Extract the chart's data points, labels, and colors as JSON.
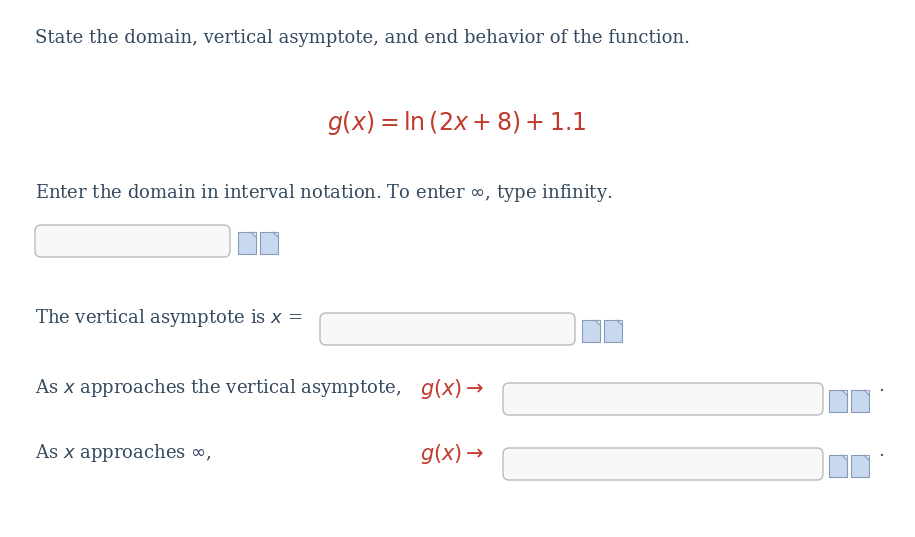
{
  "background_color": "#ffffff",
  "title_text": "State the domain, vertical asymptote, and end behavior of the function.",
  "title_color": "#34495e",
  "title_fontsize": 13.0,
  "formula_color": "#c0392b",
  "formula_fontsize": 17,
  "domain_label": "Enter the domain in interval notation. To enter $\\infty$, type infinity.",
  "domain_label_color": "#34495e",
  "domain_label_fontsize": 13.0,
  "vert_asymp_text": "The vertical asymptote is ",
  "vert_asymp_x_text": "$x$",
  "vert_asymp_eq": " =",
  "vert_asymp_color": "#34495e",
  "vert_asymp_fontsize": 13.0,
  "approach_vert_label": "As $x$ approaches the vertical asymptote,",
  "approach_vert_color": "#34495e",
  "approach_vert_fontsize": 13.0,
  "approach_inf_label": "As $x$ approaches $\\infty$,",
  "approach_inf_color": "#34495e",
  "approach_inf_fontsize": 13.0,
  "gx_arrow_color": "#c0392b",
  "gx_arrow_fontsize": 15,
  "box_edge_color": "#bbbbbb",
  "box_face_color": "#f8f8f8",
  "icon_face_color": "#c8d8ee",
  "icon_edge_color": "#8899bb",
  "period_color": "#34495e",
  "period_fontsize": 13.0
}
